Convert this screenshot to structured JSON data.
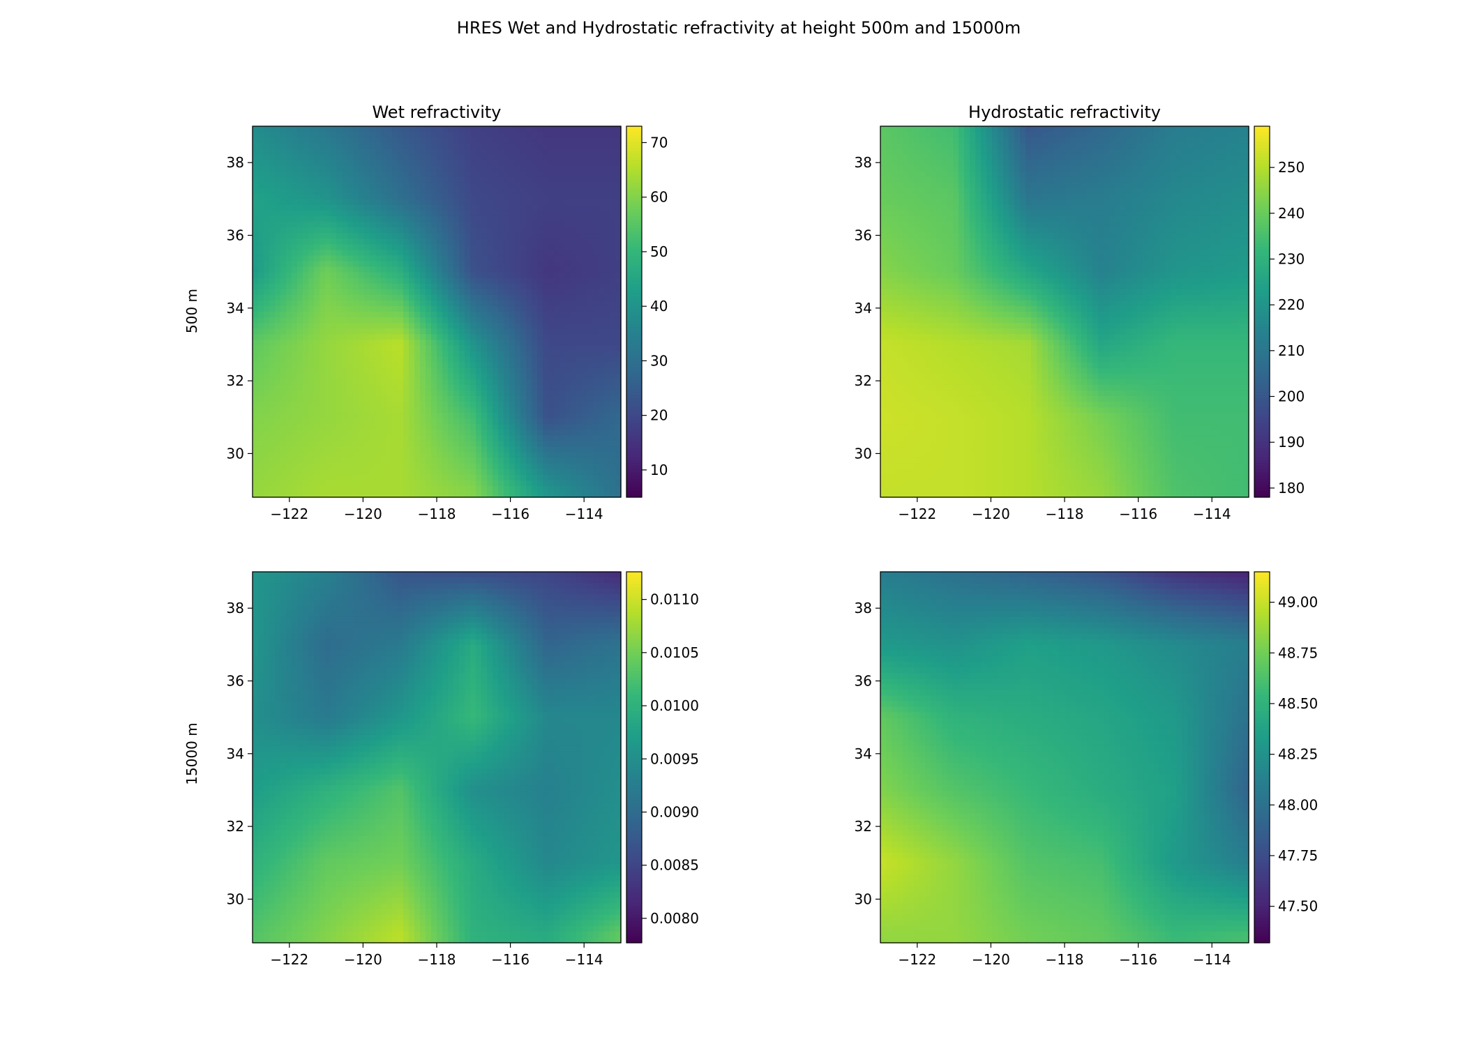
{
  "figure": {
    "suptitle": "HRES Wet and Hydrostatic refractivity at height 500m and 15000m",
    "row_labels": [
      "500 m",
      "15000 m"
    ]
  },
  "colormap": {
    "name": "viridis",
    "stops": [
      "#440154",
      "#482878",
      "#3e4989",
      "#31688e",
      "#26828e",
      "#1f9e89",
      "#35b779",
      "#6ece58",
      "#b5de2b",
      "#fde725"
    ]
  },
  "chart_data": [
    {
      "type": "heatmap",
      "title": "Wet refractivity",
      "row": 0,
      "col": 0,
      "ylabel": "500 m",
      "x_range": [
        -123,
        -113
      ],
      "y_range": [
        28.8,
        39.0
      ],
      "x_ticks": [
        -122,
        -120,
        -118,
        -116,
        -114
      ],
      "x_tick_labels": [
        "−122",
        "−120",
        "−118",
        "−116",
        "−114"
      ],
      "y_ticks": [
        30,
        32,
        34,
        36,
        38
      ],
      "y_tick_labels": [
        "30",
        "32",
        "34",
        "36",
        "38"
      ],
      "colorbar": {
        "vmin": 5,
        "vmax": 73,
        "ticks": [
          10,
          20,
          30,
          40,
          50,
          60,
          70
        ],
        "tick_labels": [
          "10",
          "20",
          "30",
          "40",
          "50",
          "60",
          "70"
        ]
      },
      "field": {
        "lon": [
          -123,
          -121,
          -119,
          -117,
          -115,
          -113
        ],
        "lat": [
          29,
          31,
          33,
          35,
          37,
          39
        ],
        "values": [
          [
            62,
            64,
            64,
            60,
            40,
            30
          ],
          [
            60,
            62,
            64,
            52,
            22,
            28
          ],
          [
            56,
            62,
            66,
            40,
            20,
            20
          ],
          [
            42,
            58,
            48,
            22,
            16,
            18
          ],
          [
            44,
            40,
            30,
            20,
            18,
            18
          ],
          [
            38,
            32,
            24,
            18,
            16,
            16
          ]
        ]
      }
    },
    {
      "type": "heatmap",
      "title": "Hydrostatic refractivity",
      "row": 0,
      "col": 1,
      "x_range": [
        -123,
        -113
      ],
      "y_range": [
        28.8,
        39.0
      ],
      "x_ticks": [
        -122,
        -120,
        -118,
        -116,
        -114
      ],
      "x_tick_labels": [
        "−122",
        "−120",
        "−118",
        "−116",
        "−114"
      ],
      "y_ticks": [
        30,
        32,
        34,
        36,
        38
      ],
      "y_tick_labels": [
        "30",
        "32",
        "34",
        "36",
        "38"
      ],
      "colorbar": {
        "vmin": 178,
        "vmax": 259,
        "ticks": [
          180,
          190,
          200,
          210,
          220,
          230,
          240,
          250
        ],
        "tick_labels": [
          "180",
          "190",
          "200",
          "210",
          "220",
          "230",
          "240",
          "250"
        ]
      },
      "field": {
        "lon": [
          -123,
          -121,
          -119,
          -117,
          -115,
          -113
        ],
        "lat": [
          29,
          31,
          33,
          35,
          37,
          39
        ],
        "values": [
          [
            252,
            252,
            250,
            246,
            236,
            234
          ],
          [
            253,
            252,
            250,
            242,
            234,
            234
          ],
          [
            252,
            250,
            248,
            226,
            232,
            232
          ],
          [
            244,
            240,
            226,
            214,
            220,
            222
          ],
          [
            240,
            238,
            210,
            212,
            216,
            218
          ],
          [
            238,
            234,
            200,
            205,
            212,
            214
          ]
        ]
      }
    },
    {
      "type": "heatmap",
      "row": 1,
      "col": 0,
      "ylabel": "15000 m",
      "x_range": [
        -123,
        -113
      ],
      "y_range": [
        28.8,
        39.0
      ],
      "x_ticks": [
        -122,
        -120,
        -118,
        -116,
        -114
      ],
      "x_tick_labels": [
        "−122",
        "−120",
        "−118",
        "−116",
        "−114"
      ],
      "y_ticks": [
        30,
        32,
        34,
        36,
        38
      ],
      "y_tick_labels": [
        "30",
        "32",
        "34",
        "36",
        "38"
      ],
      "colorbar": {
        "vmin": 0.00777,
        "vmax": 0.01126,
        "ticks": [
          0.008,
          0.0085,
          0.009,
          0.0095,
          0.01,
          0.0105,
          0.011
        ],
        "tick_labels": [
          "0.0080",
          "0.0085",
          "0.0090",
          "0.0095",
          "0.0100",
          "0.0105",
          "0.0110"
        ]
      },
      "field": {
        "lon": [
          -123,
          -121,
          -119,
          -117,
          -115,
          -113
        ],
        "lat": [
          29,
          31,
          33,
          35,
          37,
          39
        ],
        "values": [
          [
            0.0103,
            0.0106,
            0.0109,
            0.01,
            0.0099,
            0.0104
          ],
          [
            0.01,
            0.0104,
            0.0105,
            0.0099,
            0.0094,
            0.0096
          ],
          [
            0.0097,
            0.01,
            0.0103,
            0.0095,
            0.0093,
            0.0095
          ],
          [
            0.0095,
            0.0092,
            0.0096,
            0.0101,
            0.0094,
            0.0094
          ],
          [
            0.0096,
            0.009,
            0.0092,
            0.0099,
            0.0089,
            0.0091
          ],
          [
            0.0096,
            0.0093,
            0.0087,
            0.0086,
            0.0085,
            0.0082
          ]
        ]
      }
    },
    {
      "type": "heatmap",
      "row": 1,
      "col": 1,
      "x_range": [
        -123,
        -113
      ],
      "y_range": [
        28.8,
        39.0
      ],
      "x_ticks": [
        -122,
        -120,
        -118,
        -116,
        -114
      ],
      "x_tick_labels": [
        "−122",
        "−120",
        "−118",
        "−116",
        "−114"
      ],
      "y_ticks": [
        30,
        32,
        34,
        36,
        38
      ],
      "y_tick_labels": [
        "30",
        "32",
        "34",
        "36",
        "38"
      ],
      "colorbar": {
        "vmin": 47.32,
        "vmax": 49.15,
        "ticks": [
          47.5,
          47.75,
          48.0,
          48.25,
          48.5,
          48.75,
          49.0
        ],
        "tick_labels": [
          "47.50",
          "47.75",
          "48.00",
          "48.25",
          "48.50",
          "48.75",
          "49.00"
        ]
      },
      "field": {
        "lon": [
          -123,
          -121,
          -119,
          -117,
          -115,
          -113
        ],
        "lat": [
          29,
          31,
          33,
          35,
          37,
          39
        ],
        "values": [
          [
            48.85,
            48.85,
            48.75,
            48.7,
            48.55,
            48.6
          ],
          [
            49.0,
            48.85,
            48.65,
            48.6,
            48.3,
            48.1
          ],
          [
            48.8,
            48.65,
            48.55,
            48.45,
            48.35,
            47.9
          ],
          [
            48.7,
            48.5,
            48.45,
            48.4,
            48.3,
            48.0
          ],
          [
            48.3,
            48.25,
            48.35,
            48.3,
            48.2,
            48.1
          ],
          [
            48.1,
            48.0,
            47.9,
            47.8,
            47.6,
            47.5
          ]
        ]
      }
    }
  ]
}
